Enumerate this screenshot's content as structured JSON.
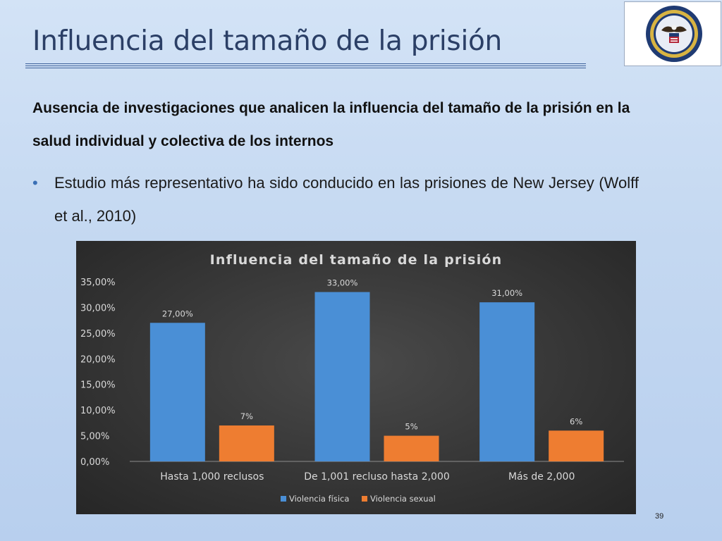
{
  "slide": {
    "title": "Influencia del tamaño de la prisión",
    "heading": "Ausencia de investigaciones que analicen la influencia del tamaño de la prisión en la salud individual y colectiva de los internos",
    "bullet": "Estudio más representativo ha sido conducido en las prisiones de New Jersey (Wolff et al., 2010)",
    "page_number": "39",
    "logo_icon": "department-of-justice-seal"
  },
  "colors": {
    "series_1": "#4a8fd6",
    "series_2": "#ee7d31",
    "chart_background": "#363636",
    "chart_text": "#d9d9d9"
  },
  "chart_data": {
    "type": "bar",
    "title": "Influencia del tamaño de la prisión",
    "categories": [
      "Hasta 1,000 reclusos",
      "De 1,001 recluso hasta 2,000",
      "Más de 2,000"
    ],
    "series": [
      {
        "name": "Violencia física",
        "values": [
          27,
          33,
          31
        ],
        "labels": [
          "27,00%",
          "33,00%",
          "31,00%"
        ]
      },
      {
        "name": "Violencia sexual",
        "values": [
          7,
          5,
          6
        ],
        "labels": [
          "7%",
          "5%",
          "6%"
        ]
      }
    ],
    "yticks": [
      "0,00%",
      "5,00%",
      "10,00%",
      "15,00%",
      "20,00%",
      "25,00%",
      "30,00%",
      "35,00%"
    ],
    "ylim": [
      0,
      35
    ],
    "grid": false,
    "legend_position": "bottom"
  }
}
